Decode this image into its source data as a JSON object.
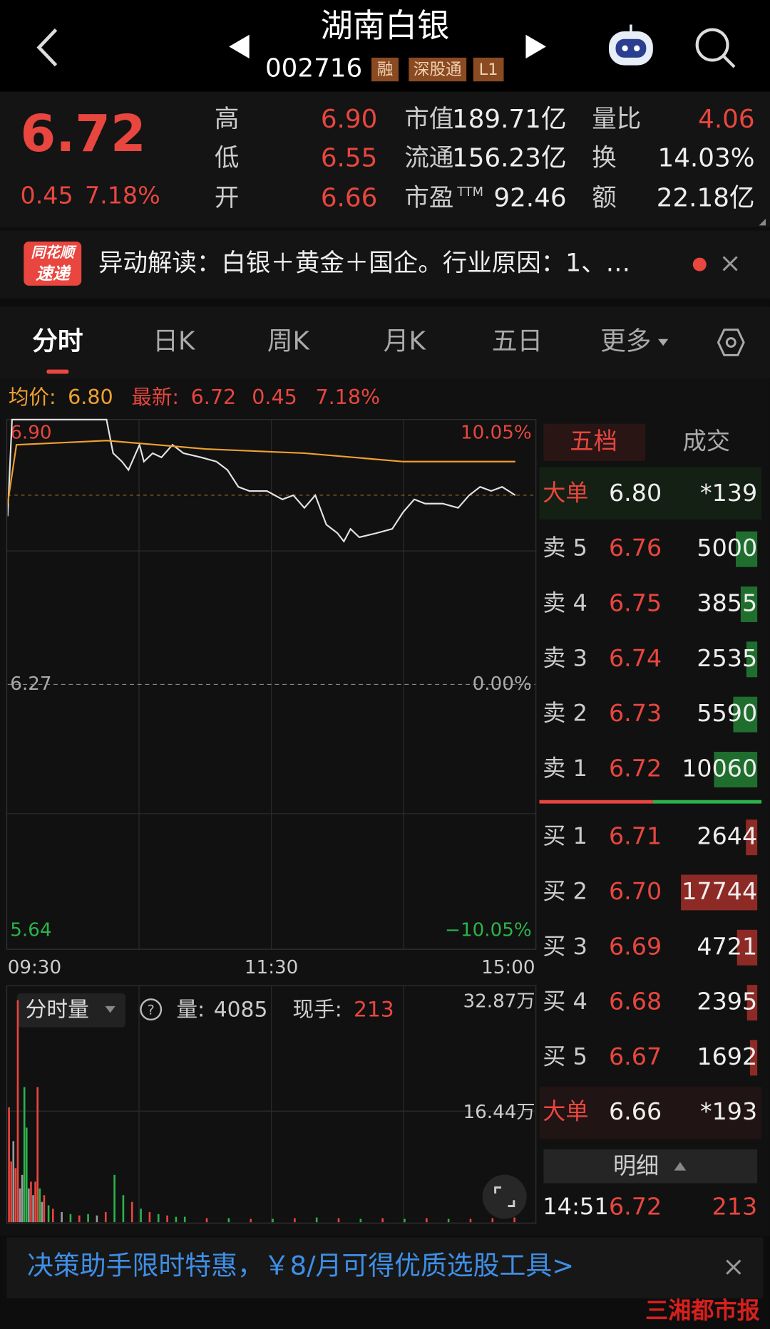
{
  "header": {
    "title": "湖南白银",
    "code": "002716",
    "tags": [
      "融",
      "深股通",
      "L1"
    ]
  },
  "quote": {
    "price": "6.72",
    "change": "0.45",
    "change_pct": "7.18%",
    "stats": [
      {
        "label": "高",
        "value": "6.90"
      },
      {
        "label": "低",
        "value": "6.55"
      },
      {
        "label": "开",
        "value": "6.66"
      },
      {
        "label": "市值",
        "value": "189.71亿"
      },
      {
        "label": "流通",
        "value": "156.23亿"
      },
      {
        "label": "市盈",
        "sup": "TTM",
        "value": "92.46"
      },
      {
        "label": "量比",
        "value": "4.06"
      },
      {
        "label": "换",
        "value": "14.03%"
      },
      {
        "label": "额",
        "value": "22.18亿"
      }
    ]
  },
  "news": {
    "brand": [
      "同花顺",
      "速递"
    ],
    "text": "异动解读：白银＋黄金＋国企。行业原因：1、…"
  },
  "tabs": [
    "分时",
    "日K",
    "周K",
    "月K",
    "五日",
    "更多"
  ],
  "chart_info": {
    "avg_label": "均价:",
    "avg": "6.80",
    "latest_label": "最新:",
    "latest": "6.72",
    "change": "0.45",
    "change_pct": "7.18%"
  },
  "chart_data": [
    {
      "type": "line",
      "series": [
        {
          "color": "#e4e4e4",
          "x": [
            0,
            2,
            15,
            45,
            48,
            52,
            55,
            60,
            62,
            66,
            70,
            75,
            80,
            88,
            95,
            100,
            105,
            110,
            118,
            125,
            130,
            135,
            140,
            145,
            150,
            153,
            156,
            160,
            168,
            175,
            180,
            185,
            190,
            198,
            205,
            210,
            215,
            220,
            225,
            231
          ],
          "values": [
            6.67,
            6.9,
            6.9,
            6.9,
            6.82,
            6.8,
            6.78,
            6.84,
            6.8,
            6.82,
            6.81,
            6.84,
            6.82,
            6.81,
            6.8,
            6.78,
            6.74,
            6.73,
            6.73,
            6.71,
            6.72,
            6.69,
            6.72,
            6.65,
            6.63,
            6.61,
            6.64,
            6.62,
            6.63,
            6.64,
            6.68,
            6.71,
            6.7,
            6.7,
            6.69,
            6.72,
            6.74,
            6.73,
            6.74,
            6.72
          ]
        },
        {
          "color": "#f0a030",
          "x": [
            0,
            4,
            45,
            90,
            135,
            180,
            231
          ],
          "values": [
            6.7,
            6.84,
            6.85,
            6.83,
            6.82,
            6.8,
            6.8
          ]
        }
      ],
      "xlim": [
        0,
        240
      ],
      "xticks": [
        {
          "value": 0,
          "label": "09:30"
        },
        {
          "value": 120,
          "label": "11:30"
        },
        {
          "value": 240,
          "label": "15:00"
        }
      ],
      "ylim": [
        5.64,
        6.9
      ],
      "yticks": [
        5.64,
        6.27,
        {
          "value": 6.9,
          "label": "6.90"
        }
      ],
      "y2lim": [
        -10.05,
        10.05
      ],
      "y2ticks": [
        {
          "value": -10.05,
          "label": "−10.05%"
        },
        {
          "value": 0,
          "label": "0.00%"
        },
        {
          "value": 10.05,
          "label": "10.05%"
        }
      ]
    },
    {
      "type": "bar",
      "x": [
        0,
        1,
        2,
        3,
        4,
        5,
        6,
        7,
        8,
        9,
        10,
        11,
        12,
        13,
        14,
        15,
        16,
        18,
        20,
        24,
        28,
        32,
        36,
        40,
        44,
        48,
        52,
        56,
        60,
        64,
        68,
        72,
        76,
        80,
        90,
        100,
        110,
        120,
        130,
        140,
        150,
        160,
        170,
        180,
        190,
        200,
        210,
        220,
        230
      ],
      "values": [
        17,
        9,
        12,
        8,
        32.87,
        5,
        7,
        20,
        14,
        5,
        6,
        4,
        6,
        20,
        5,
        3,
        4,
        2.5,
        2,
        1.5,
        1.2,
        1,
        1.2,
        1,
        1.5,
        7,
        4,
        3,
        2,
        1.5,
        1.2,
        1,
        0.8,
        0.8,
        0.6,
        0.6,
        0.5,
        0.5,
        0.6,
        0.7,
        0.6,
        0.5,
        0.6,
        0.5,
        0.6,
        0.5,
        0.5,
        0.6,
        0.7
      ],
      "colors": [
        "#e8463f",
        "#e8463f",
        "#9a9a9a",
        "#e8463f",
        "#e8463f",
        "#9a9a9a",
        "#9a9a9a",
        "#2db24a",
        "#2db24a",
        "#9a9a9a",
        "#e8463f",
        "#9a9a9a",
        "#e8463f",
        "#e8463f",
        "#2db24a",
        "#9a9a9a",
        "#e8463f",
        "#2db24a",
        "#e8463f",
        "#9a9a9a",
        "#2db24a",
        "#e8463f",
        "#2db24a",
        "#9a9a9a",
        "#e8463f",
        "#2db24a",
        "#2db24a",
        "#e8463f",
        "#2db24a",
        "#e8463f",
        "#2db24a",
        "#e8463f",
        "#2db24a",
        "#2db24a",
        "#e8463f",
        "#2db24a",
        "#e8463f",
        "#2db24a",
        "#e8463f",
        "#2db24a",
        "#e8463f",
        "#2db24a",
        "#e8463f",
        "#2db24a",
        "#e8463f",
        "#2db24a",
        "#e8463f",
        "#e8463f",
        "#e8463f"
      ],
      "xlim": [
        0,
        240
      ],
      "ylim": [
        0,
        32.87
      ],
      "yticks": [
        {
          "value": 16.44,
          "label": "16.44万"
        },
        {
          "value": 32.87,
          "label": "32.87万"
        }
      ]
    }
  ],
  "volume_info": {
    "selector": "分时量",
    "volume_label": "量:",
    "volume": "4085",
    "hand_label": "现手:",
    "hand": "213"
  },
  "order_book": {
    "tabs": [
      "五档",
      "成交"
    ],
    "rows": [
      {
        "label": "大单",
        "price": "6.80",
        "volume": "*139"
      },
      {
        "label": "卖 5",
        "price": "6.76",
        "volume": 5000
      },
      {
        "label": "卖 4",
        "price": "6.75",
        "volume": 3855
      },
      {
        "label": "卖 3",
        "price": "6.74",
        "volume": 2535
      },
      {
        "label": "卖 2",
        "price": "6.73",
        "volume": 5590
      },
      {
        "label": "卖 1",
        "price": "6.72",
        "volume": 10060
      },
      {
        "label": "买 1",
        "price": "6.71",
        "volume": 2644
      },
      {
        "label": "买 2",
        "price": "6.70",
        "volume": 17744
      },
      {
        "label": "买 3",
        "price": "6.69",
        "volume": 4721
      },
      {
        "label": "买 4",
        "price": "6.68",
        "volume": 2395
      },
      {
        "label": "买 5",
        "price": "6.67",
        "volume": 1692
      },
      {
        "label": "大单",
        "price": "6.66",
        "volume": "*193"
      }
    ],
    "detail_label": "明细",
    "trade": {
      "time": "14:51",
      "price": "6.72",
      "volume": "213"
    }
  },
  "banner": {
    "text": "决策助手限时特惠，￥8/月可得优质选股工具>"
  },
  "watermark": "三湘都市报"
}
